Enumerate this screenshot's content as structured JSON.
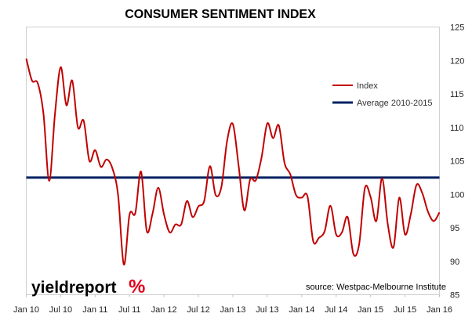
{
  "chart_data": {
    "type": "line",
    "title": "CONSUMER SENTIMENT INDEX",
    "xlabel": "",
    "ylabel": "",
    "ylim": [
      85,
      125
    ],
    "y_ticks": [
      85,
      90,
      95,
      100,
      105,
      110,
      115,
      120,
      125
    ],
    "x_tick_labels": [
      "Jan 10",
      "Jul 10",
      "Jan 11",
      "Jul 11",
      "Jan 12",
      "Jul 12",
      "Jan 13",
      "Jul 13",
      "Jan 14",
      "Jul 14",
      "Jan 15",
      "Jul 15",
      "Jan 16"
    ],
    "grid": false,
    "legend_position": "upper-right",
    "series": [
      {
        "name": "Index",
        "color": "#c00000",
        "x": [
          "Jan 10",
          "Feb 10",
          "Mar 10",
          "Apr 10",
          "May 10",
          "Jun 10",
          "Jul 10",
          "Aug 10",
          "Sep 10",
          "Oct 10",
          "Nov 10",
          "Dec 10",
          "Jan 11",
          "Feb 11",
          "Mar 11",
          "Apr 11",
          "May 11",
          "Jun 11",
          "Jul 11",
          "Aug 11",
          "Sep 11",
          "Oct 11",
          "Nov 11",
          "Dec 11",
          "Jan 12",
          "Feb 12",
          "Mar 12",
          "Apr 12",
          "May 12",
          "Jun 12",
          "Jul 12",
          "Aug 12",
          "Sep 12",
          "Oct 12",
          "Nov 12",
          "Dec 12",
          "Jan 13",
          "Feb 13",
          "Mar 13",
          "Apr 13",
          "May 13",
          "Jun 13",
          "Jul 13",
          "Aug 13",
          "Sep 13",
          "Oct 13",
          "Nov 13",
          "Dec 13",
          "Jan 14",
          "Feb 14",
          "Mar 14",
          "Apr 14",
          "May 14",
          "Jun 14",
          "Jul 14",
          "Aug 14",
          "Sep 14",
          "Oct 14",
          "Nov 14",
          "Dec 14",
          "Jan 15",
          "Feb 15",
          "Mar 15",
          "Apr 15",
          "May 15",
          "Jun 15",
          "Jul 15",
          "Aug 15",
          "Sep 15",
          "Oct 15",
          "Nov 15",
          "Dec 15",
          "Jan 16"
        ],
        "values": [
          120.3,
          117.0,
          116.6,
          112.0,
          102.0,
          112.0,
          119.0,
          113.3,
          117.0,
          110.0,
          111.0,
          105.0,
          106.6,
          104.1,
          105.2,
          103.9,
          99.9,
          89.5,
          97.0,
          97.2,
          103.4,
          94.5,
          97.1,
          101.0,
          97.0,
          94.3,
          95.5,
          95.5,
          99.0,
          96.6,
          98.2,
          99.0,
          104.2,
          99.9,
          101.1,
          108.0,
          110.5,
          104.3,
          97.6,
          102.2,
          102.1,
          105.5,
          110.6,
          108.4,
          110.3,
          104.7,
          103.0,
          99.9,
          99.5,
          99.7,
          93.0,
          93.5,
          94.5,
          98.3,
          94.0,
          94.3,
          96.6,
          91.1,
          92.5,
          100.9,
          99.6,
          96.0,
          102.4,
          95.5,
          92.1,
          99.5,
          94.0,
          97.0,
          101.4,
          100.2,
          97.4,
          96.0,
          97.3
        ]
      },
      {
        "name": "Average 2010-2015",
        "color": "#002060",
        "values": [
          102.5
        ]
      }
    ],
    "annotations": [
      "source: Westpac-Melbourne Institute"
    ]
  },
  "logo": {
    "text": "yieldreport",
    "symbol": "%",
    "text_color": "#000000",
    "symbol_colors": [
      "#e2001a",
      "#1a9e3f"
    ]
  }
}
